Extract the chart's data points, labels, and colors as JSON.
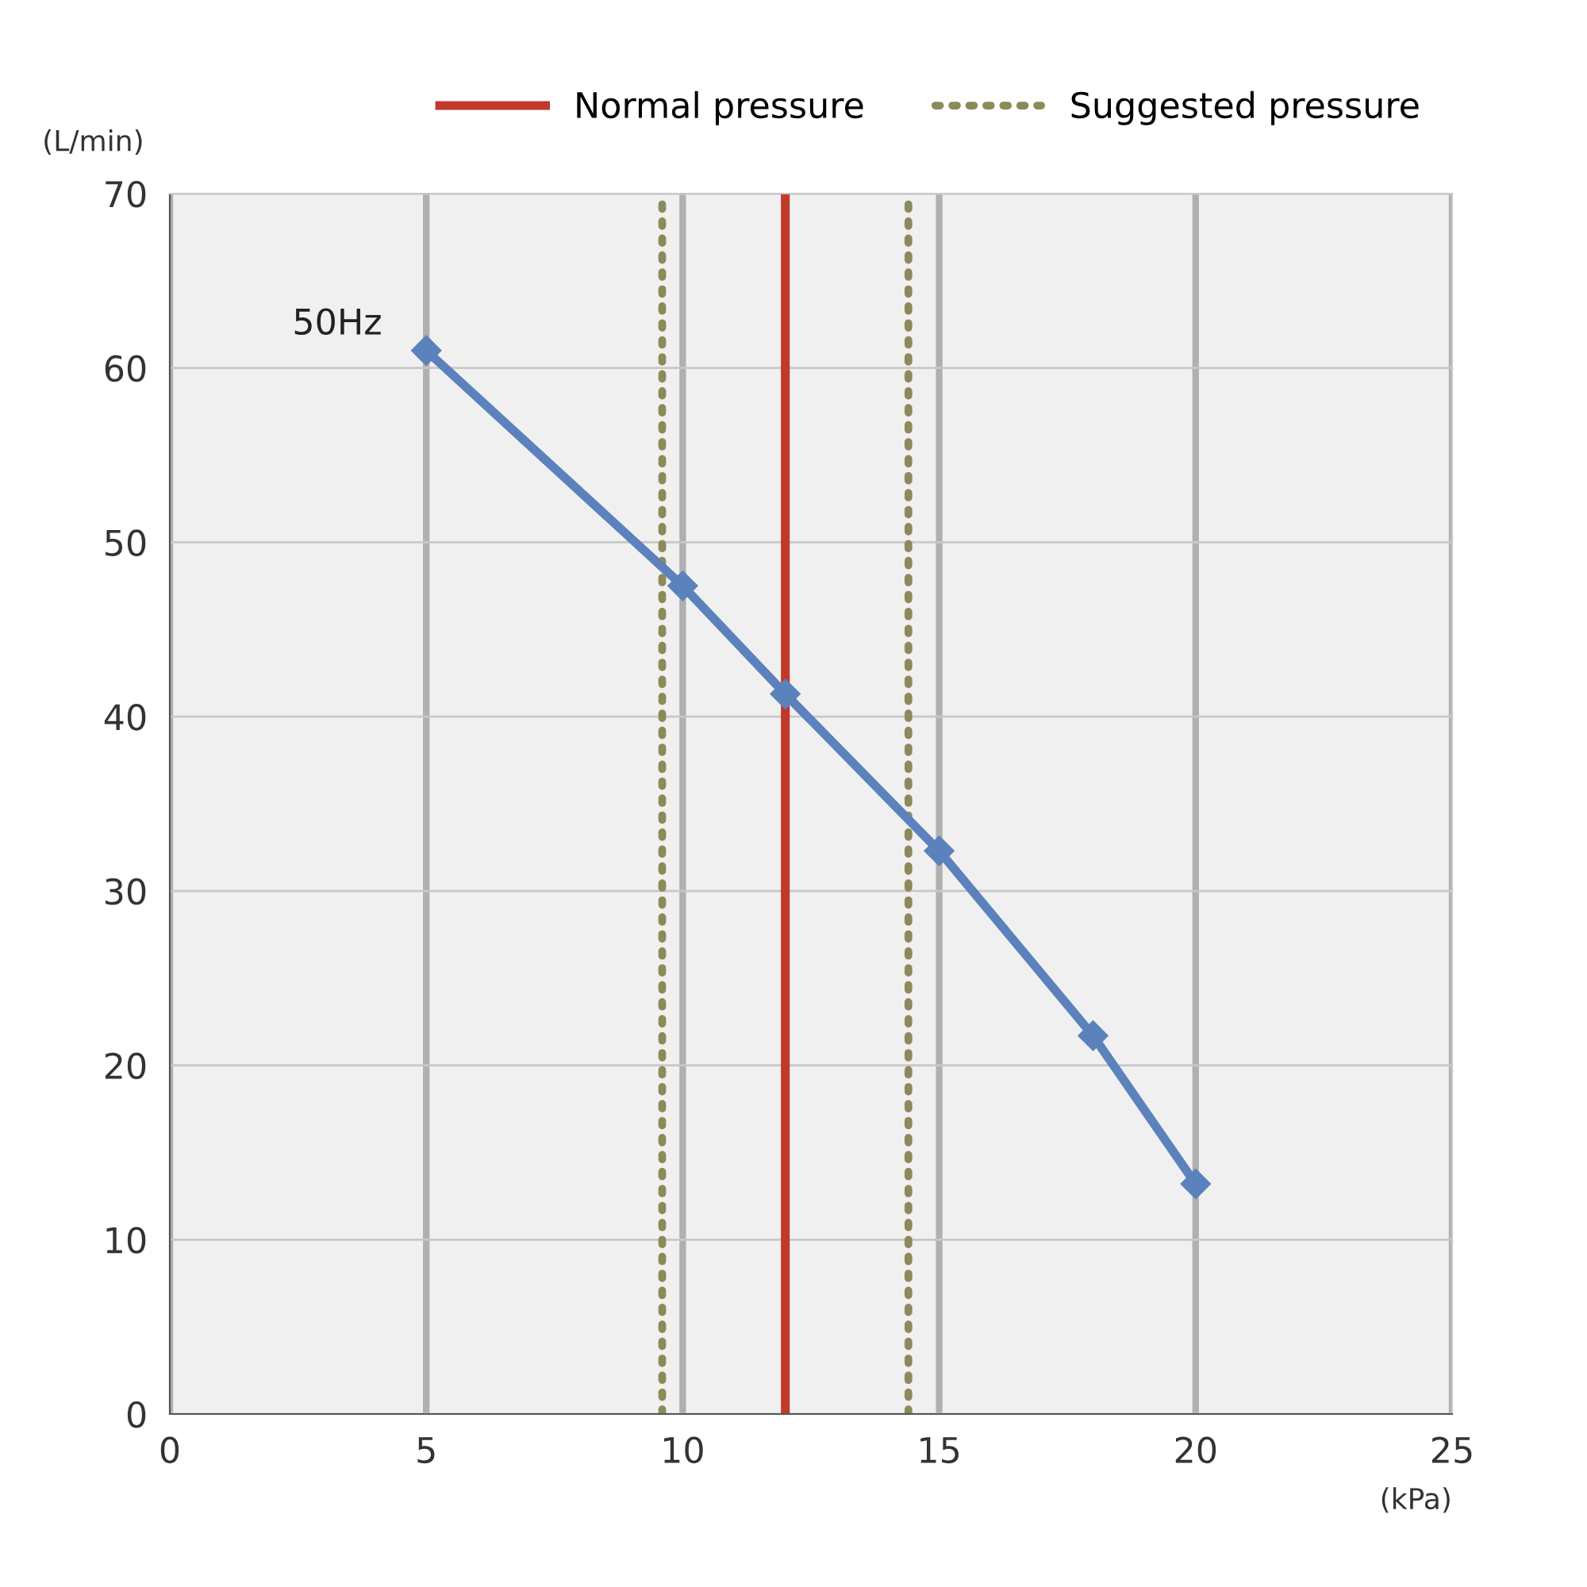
{
  "chart_data": {
    "type": "line",
    "xlabel": "(kPa)",
    "ylabel": "(L/min)",
    "x": [
      5,
      10,
      12,
      15,
      18,
      20
    ],
    "series": [
      {
        "name": "50Hz",
        "color": "#5b82bd",
        "values": [
          61,
          47.5,
          41.3,
          32.3,
          21.7,
          13.2
        ]
      }
    ],
    "xlim": [
      0,
      25
    ],
    "xticks": [
      0,
      5,
      10,
      15,
      20,
      25
    ],
    "ylim": [
      0,
      70
    ],
    "yticks": [
      0,
      10,
      20,
      30,
      40,
      50,
      60,
      70
    ],
    "ref_lines": [
      {
        "axis": "x",
        "value": 12,
        "label": "Normal pressure",
        "color": "#c0392b",
        "line_style": "solid"
      },
      {
        "axis": "x",
        "value": 9.6,
        "label": "Suggested pressure",
        "color": "#8c8a5a",
        "line_style": "dotted"
      },
      {
        "axis": "x",
        "value": 14.4,
        "label": null,
        "color": "#8c8a5a",
        "line_style": "dotted"
      }
    ],
    "grid": true,
    "legend": "top right",
    "marker": "diamond",
    "line_style": "solid"
  }
}
